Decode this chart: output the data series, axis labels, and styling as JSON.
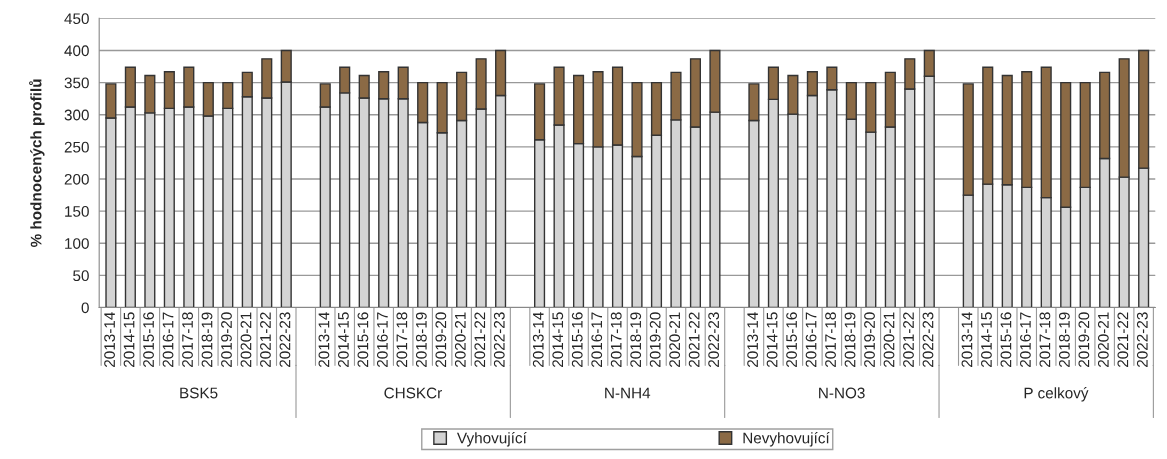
{
  "chart_data": {
    "type": "bar",
    "stacked": true,
    "ylabel": "% hodnocených profilů",
    "categories": [
      "2013-14",
      "2014-15",
      "2015-16",
      "2016-17",
      "2017-18",
      "2018-19",
      "2019-20",
      "2020-21",
      "2021-22",
      "2022-23",
      null,
      "2013-14",
      "2014-15",
      "2015-16",
      "2016-17",
      "2017-18",
      "2018-19",
      "2019-20",
      "2020-21",
      "2021-22",
      "2022-23",
      null,
      "2013-14",
      "2014-15",
      "2015-16",
      "2016-17",
      "2017-18",
      "2018-19",
      "2019-20",
      "2020-21",
      "2021-22",
      "2022-23",
      null,
      "2013-14",
      "2014-15",
      "2015-16",
      "2016-17",
      "2017-18",
      "2018-19",
      "2019-20",
      "2020-21",
      "2021-22",
      "2022-23",
      null,
      "2013-14",
      "2014-15",
      "2015-16",
      "2016-17",
      "2017-18",
      "2018-19",
      "2019-20",
      "2020-21",
      "2021-22",
      "2022-23"
    ],
    "series": [
      {
        "name": "Vyhovující",
        "color": "#d4d4d4",
        "values": [
          295,
          312,
          303,
          310,
          312,
          298,
          310,
          328,
          326,
          351,
          null,
          312,
          334,
          326,
          325,
          325,
          288,
          272,
          291,
          309,
          330,
          null,
          261,
          284,
          255,
          250,
          253,
          235,
          268,
          292,
          281,
          304,
          null,
          291,
          324,
          301,
          330,
          339,
          293,
          273,
          281,
          340,
          360,
          null,
          175,
          192,
          191,
          187,
          171,
          156,
          187,
          232,
          203,
          217
        ]
      },
      {
        "name": "Nevyhovující",
        "color": "#8b6a45",
        "values": [
          53,
          62,
          58,
          57,
          62,
          52,
          40,
          38,
          61,
          49,
          null,
          36,
          40,
          35,
          42,
          49,
          62,
          78,
          75,
          78,
          70,
          null,
          87,
          90,
          106,
          117,
          121,
          115,
          82,
          74,
          106,
          96,
          null,
          57,
          50,
          60,
          37,
          35,
          57,
          77,
          85,
          47,
          40,
          null,
          173,
          182,
          170,
          180,
          203,
          194,
          163,
          134,
          184,
          183
        ]
      }
    ],
    "annotations": [
      "BSK5",
      "CHSKCr",
      "N-NH4",
      "N-NO3",
      "P celkový"
    ],
    "ylim": [
      0,
      450
    ],
    "yticks": [
      0,
      50,
      100,
      150,
      200,
      250,
      300,
      350,
      400,
      450
    ],
    "grid": "y",
    "legend": "bottom",
    "marker": "square"
  }
}
